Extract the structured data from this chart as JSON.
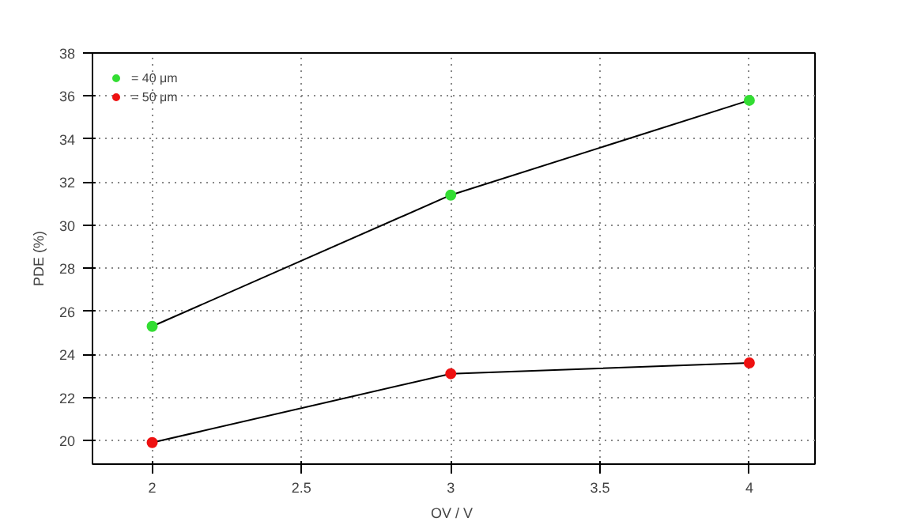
{
  "chart_data": {
    "type": "line",
    "xlabel": "OV  / V",
    "ylabel": "PDE (%)",
    "x": [
      2,
      3,
      4
    ],
    "series": [
      {
        "name": "= 40 μm",
        "color": "#33dd33",
        "values": [
          25.3,
          31.4,
          35.8
        ]
      },
      {
        "name": "= 50 μm",
        "color": "#ee1111",
        "values": [
          19.9,
          23.1,
          23.6
        ]
      }
    ],
    "xlim": [
      1.8,
      4.22
    ],
    "xticks": [
      2,
      {
        "value": 2.5,
        "label": "2.5"
      },
      3,
      {
        "value": 3.5,
        "label": "3.5"
      },
      4
    ],
    "ylim": [
      18.9,
      38
    ],
    "yticks": [
      20,
      22,
      24,
      26,
      28,
      30,
      32,
      34,
      36,
      38
    ],
    "grid": true,
    "legend": "top left",
    "marker": "circle",
    "line_style": "solid"
  }
}
